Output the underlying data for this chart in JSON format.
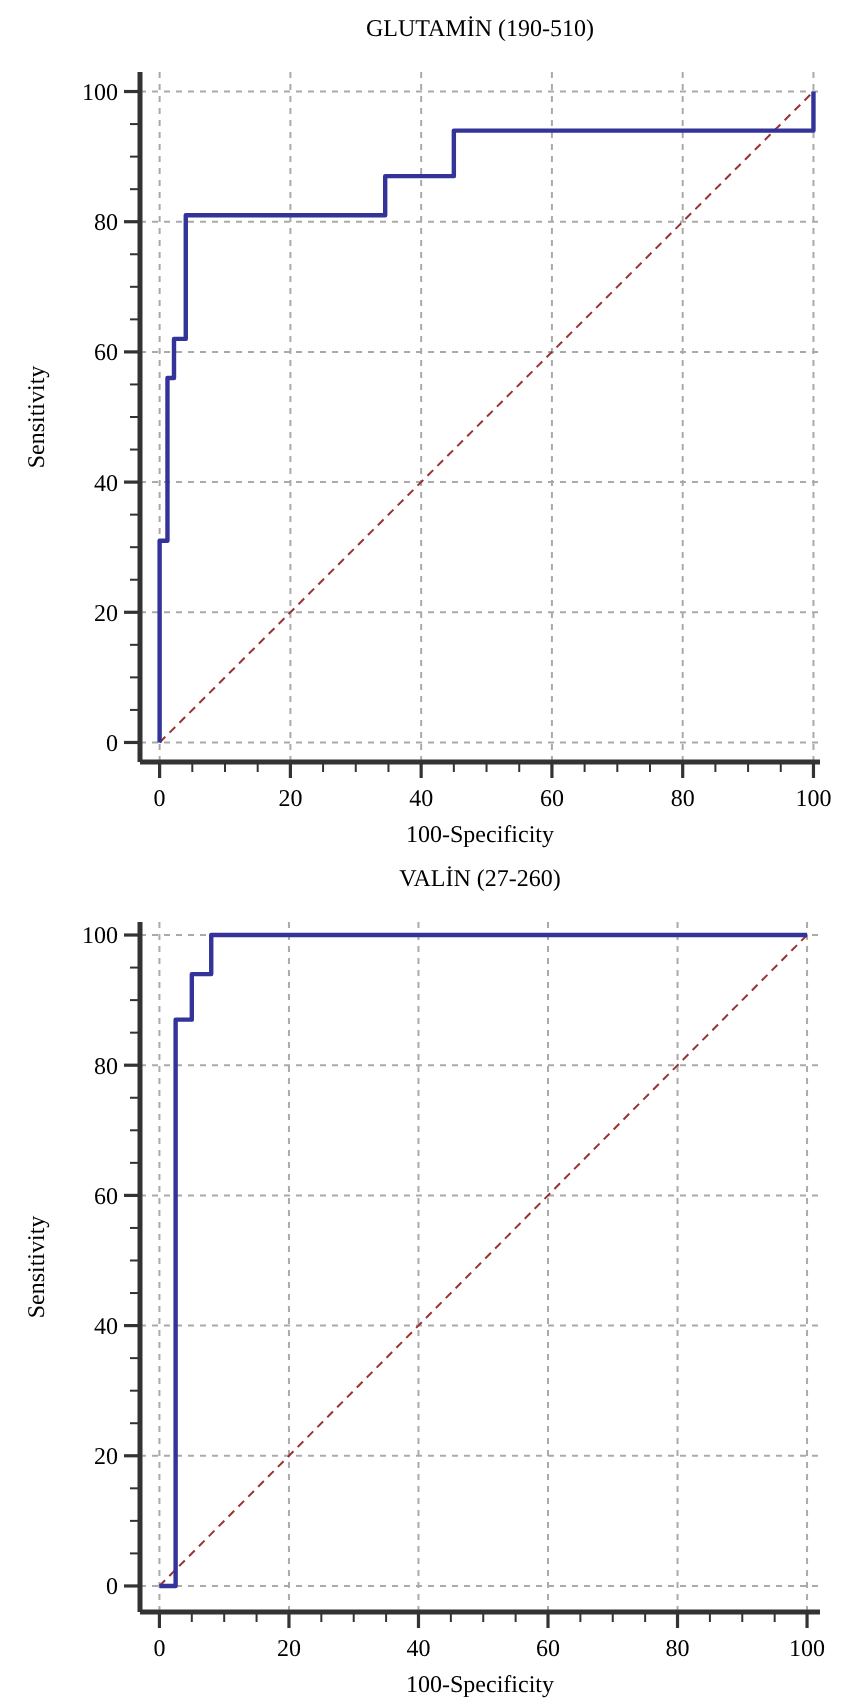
{
  "chart_data": [
    {
      "type": "line",
      "title": "GLUTAMİN (190-510)",
      "xlabel": "100-Specificity",
      "ylabel": "Sensitivity",
      "xlim": [
        -3,
        101
      ],
      "ylim": [
        -3,
        103
      ],
      "xticks": [
        0,
        {
          "value": 5,
          "label": null
        },
        {
          "value": 10,
          "label": null
        },
        {
          "value": 15,
          "label": null
        },
        20,
        {
          "value": 25,
          "label": null
        },
        {
          "value": 30,
          "label": null
        },
        {
          "value": 35,
          "label": null
        },
        40,
        {
          "value": 45,
          "label": null
        },
        {
          "value": 50,
          "label": null
        },
        {
          "value": 55,
          "label": null
        },
        60,
        {
          "value": 65,
          "label": null
        },
        {
          "value": 70,
          "label": null
        },
        {
          "value": 75,
          "label": null
        },
        80,
        {
          "value": 85,
          "label": null
        },
        {
          "value": 90,
          "label": null
        },
        {
          "value": 95,
          "label": null
        },
        100
      ],
      "yticks": [
        0,
        {
          "value": 5,
          "label": null
        },
        {
          "value": 10,
          "label": null
        },
        {
          "value": 15,
          "label": null
        },
        20,
        {
          "value": 25,
          "label": null
        },
        {
          "value": 30,
          "label": null
        },
        {
          "value": 35,
          "label": null
        },
        40,
        {
          "value": 45,
          "label": null
        },
        {
          "value": 50,
          "label": null
        },
        {
          "value": 55,
          "label": null
        },
        60,
        {
          "value": 65,
          "label": null
        },
        {
          "value": 70,
          "label": null
        },
        {
          "value": 75,
          "label": null
        },
        80,
        {
          "value": 85,
          "label": null
        },
        {
          "value": 90,
          "label": null
        },
        {
          "value": 95,
          "label": null
        },
        100
      ],
      "grid": true,
      "series": [
        {
          "color": "#333399",
          "line_style": "solid",
          "x": [
            0,
            0,
            1.2,
            1.2,
            2.2,
            2.2,
            4,
            4,
            34.5,
            34.5,
            45,
            45,
            100,
            100
          ],
          "values": [
            0,
            31,
            31,
            56,
            56,
            62,
            62,
            81,
            81,
            87,
            87,
            94,
            94,
            100
          ]
        },
        {
          "color": "#993333",
          "line_style": "dashed",
          "x": [
            0,
            100
          ],
          "values": [
            0,
            100
          ]
        }
      ]
    },
    {
      "type": "line",
      "title": "VALİN (27-260)",
      "xlabel": "100-Specificity",
      "ylabel": "Sensitivity",
      "xlim": [
        -3,
        102
      ],
      "ylim": [
        -4,
        102
      ],
      "xticks": [
        0,
        {
          "value": 5,
          "label": null
        },
        {
          "value": 10,
          "label": null
        },
        {
          "value": 15,
          "label": null
        },
        20,
        {
          "value": 25,
          "label": null
        },
        {
          "value": 30,
          "label": null
        },
        {
          "value": 35,
          "label": null
        },
        40,
        {
          "value": 45,
          "label": null
        },
        {
          "value": 50,
          "label": null
        },
        {
          "value": 55,
          "label": null
        },
        60,
        {
          "value": 65,
          "label": null
        },
        {
          "value": 70,
          "label": null
        },
        {
          "value": 75,
          "label": null
        },
        80,
        {
          "value": 85,
          "label": null
        },
        {
          "value": 90,
          "label": null
        },
        {
          "value": 95,
          "label": null
        },
        100
      ],
      "yticks": [
        0,
        {
          "value": 5,
          "label": null
        },
        {
          "value": 10,
          "label": null
        },
        {
          "value": 15,
          "label": null
        },
        20,
        {
          "value": 25,
          "label": null
        },
        {
          "value": 30,
          "label": null
        },
        {
          "value": 35,
          "label": null
        },
        40,
        {
          "value": 45,
          "label": null
        },
        {
          "value": 50,
          "label": null
        },
        {
          "value": 55,
          "label": null
        },
        60,
        {
          "value": 65,
          "label": null
        },
        {
          "value": 70,
          "label": null
        },
        {
          "value": 75,
          "label": null
        },
        80,
        {
          "value": 85,
          "label": null
        },
        {
          "value": 90,
          "label": null
        },
        {
          "value": 95,
          "label": null
        },
        100
      ],
      "grid": true,
      "series": [
        {
          "color": "#333399",
          "line_style": "solid",
          "x": [
            0,
            2.5,
            2.5,
            5,
            5,
            8,
            8,
            100
          ],
          "values": [
            0,
            0,
            87,
            87,
            94,
            94,
            100,
            100
          ]
        },
        {
          "color": "#993333",
          "line_style": "dashed",
          "x": [
            0,
            100
          ],
          "values": [
            0,
            100
          ]
        }
      ]
    }
  ]
}
